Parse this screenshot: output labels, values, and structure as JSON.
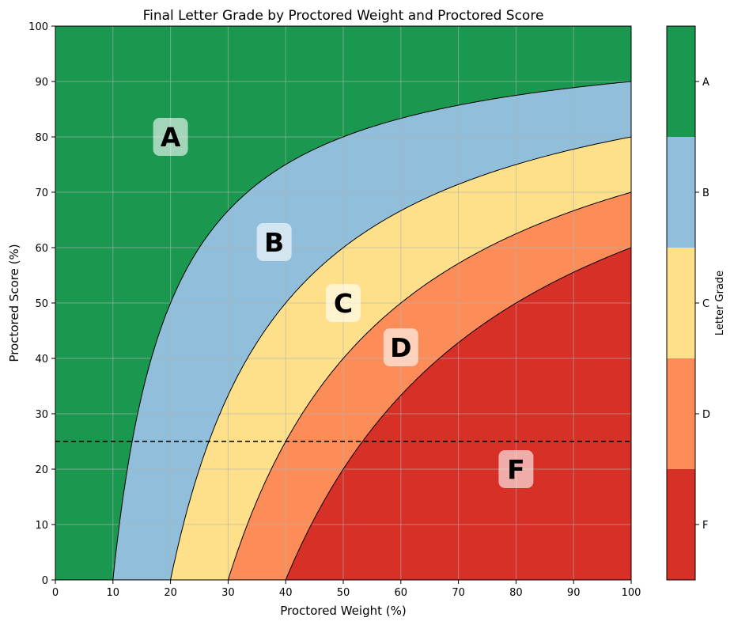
{
  "chart_data": {
    "type": "area",
    "title": "Final Letter Grade by Proctored Weight and Proctored Score",
    "xlabel": "Proctored Weight (%)",
    "ylabel": "Proctored Score (%)",
    "xlim": [
      0,
      100
    ],
    "ylim": [
      0,
      100
    ],
    "xticks": [
      "0",
      "10",
      "20",
      "30",
      "40",
      "50",
      "60",
      "70",
      "80",
      "90",
      "100"
    ],
    "yticks": [
      "0",
      "10",
      "20",
      "30",
      "40",
      "50",
      "60",
      "70",
      "80",
      "90",
      "100"
    ],
    "grid": true,
    "regions": [
      {
        "grade": "A",
        "min_final": 90,
        "color": "#1a9850"
      },
      {
        "grade": "B",
        "min_final": 80,
        "color": "#91bfdb"
      },
      {
        "grade": "C",
        "min_final": 70,
        "color": "#fee08b"
      },
      {
        "grade": "D",
        "min_final": 60,
        "color": "#fc8d59"
      },
      {
        "grade": "F",
        "min_final": 0,
        "color": "#d73027"
      }
    ],
    "boundaries": [
      {
        "between": "A/B",
        "x": [
          10,
          20,
          30,
          40,
          50,
          60,
          70,
          80,
          90,
          100
        ],
        "y": [
          0,
          50,
          66.7,
          75,
          80,
          83.3,
          85.7,
          87.5,
          88.9,
          90
        ]
      },
      {
        "between": "B/C",
        "x": [
          20,
          30,
          40,
          50,
          60,
          70,
          80,
          90,
          100
        ],
        "y": [
          0,
          33.3,
          50,
          60,
          66.7,
          71.4,
          75,
          77.8,
          80
        ]
      },
      {
        "between": "C/D",
        "x": [
          30,
          40,
          50,
          60,
          70,
          80,
          90,
          100
        ],
        "y": [
          0,
          25,
          40,
          50,
          57.1,
          62.5,
          66.7,
          70
        ]
      },
      {
        "between": "D/F",
        "x": [
          40,
          50,
          60,
          70,
          80,
          90,
          100
        ],
        "y": [
          0,
          20,
          33.3,
          42.9,
          50,
          55.6,
          60
        ]
      }
    ],
    "labels": [
      {
        "text": "A",
        "x": 20,
        "y": 80
      },
      {
        "text": "B",
        "x": 38,
        "y": 61
      },
      {
        "text": "C",
        "x": 50,
        "y": 50
      },
      {
        "text": "D",
        "x": 60,
        "y": 42
      },
      {
        "text": "F",
        "x": 80,
        "y": 20
      }
    ],
    "reference_line": {
      "y": 25,
      "style": "dashed",
      "color": "#000000"
    },
    "colorbar": {
      "label": "Letter Grade",
      "ticks": [
        "F",
        "D",
        "C",
        "B",
        "A"
      ]
    }
  }
}
